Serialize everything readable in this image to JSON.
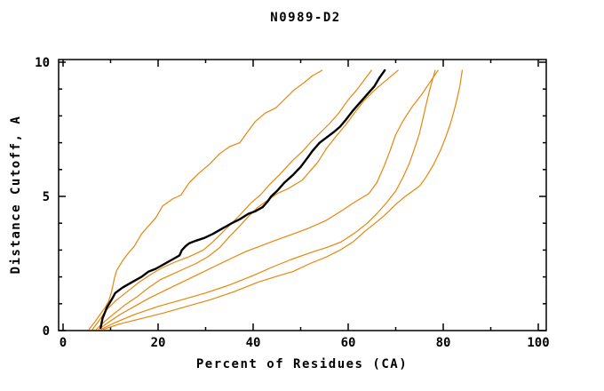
{
  "title": "N0989-D2",
  "chart_data": {
    "type": "line",
    "title": "N0989-D2",
    "xlabel": "Percent of Residues (CA)",
    "ylabel": "Distance Cutoff, A",
    "xlim": [
      0,
      100
    ],
    "ylim": [
      0,
      10
    ],
    "x_major_ticks": [
      0,
      20,
      40,
      60,
      80,
      100
    ],
    "x_major_tick_labels": [
      "0",
      "20",
      "40",
      "60",
      "80",
      "100"
    ],
    "x_minor_ticks": [
      10,
      30,
      50,
      70,
      90
    ],
    "y_major_ticks": [
      0,
      5,
      10
    ],
    "y_major_tick_labels": [
      "0",
      "5",
      "10"
    ],
    "y_minor_ticks": [
      1,
      2,
      3,
      4,
      6,
      7,
      8,
      9
    ],
    "grid": false,
    "legend": null,
    "background_color": "#ffffff",
    "frame_color": "#000000",
    "model_color": "#e8860b",
    "highlight_color": "#000000",
    "series": [
      {
        "name": "model-curve-1",
        "color": "#e8860b",
        "stroke_width": 1.2,
        "points": [
          [
            5.5,
            0.05
          ],
          [
            6.8,
            0.35
          ],
          [
            7.8,
            0.6
          ],
          [
            8.8,
            0.85
          ],
          [
            9.6,
            1.1
          ],
          [
            10.2,
            1.45
          ],
          [
            10.8,
            1.95
          ],
          [
            11.3,
            2.25
          ],
          [
            12.5,
            2.6
          ],
          [
            13.8,
            2.9
          ],
          [
            15.0,
            3.15
          ],
          [
            16.5,
            3.6
          ],
          [
            18.0,
            3.9
          ],
          [
            19.5,
            4.2
          ],
          [
            21.0,
            4.65
          ],
          [
            23.0,
            4.9
          ],
          [
            24.8,
            5.05
          ],
          [
            26.5,
            5.5
          ],
          [
            28.5,
            5.85
          ],
          [
            30.8,
            6.2
          ],
          [
            33.0,
            6.6
          ],
          [
            35.0,
            6.85
          ],
          [
            37.2,
            7.0
          ],
          [
            38.8,
            7.4
          ],
          [
            40.5,
            7.8
          ],
          [
            42.5,
            8.1
          ],
          [
            44.8,
            8.3
          ],
          [
            46.5,
            8.6
          ],
          [
            48.5,
            8.95
          ],
          [
            50.8,
            9.25
          ],
          [
            52.5,
            9.5
          ],
          [
            54.5,
            9.7
          ]
        ]
      },
      {
        "name": "model-curve-2",
        "color": "#e8860b",
        "stroke_width": 1.2,
        "points": [
          [
            6.2,
            0.05
          ],
          [
            7.5,
            0.35
          ],
          [
            9.0,
            0.75
          ],
          [
            11.0,
            1.1
          ],
          [
            13.5,
            1.45
          ],
          [
            16.0,
            1.8
          ],
          [
            18.5,
            2.1
          ],
          [
            21.0,
            2.35
          ],
          [
            23.5,
            2.55
          ],
          [
            26.5,
            2.75
          ],
          [
            29.5,
            3.0
          ],
          [
            31.5,
            3.3
          ],
          [
            33.5,
            3.65
          ],
          [
            35.5,
            4.0
          ],
          [
            37.2,
            4.3
          ],
          [
            39.5,
            4.75
          ],
          [
            41.5,
            5.05
          ],
          [
            43.5,
            5.45
          ],
          [
            45.5,
            5.8
          ],
          [
            48.4,
            6.35
          ],
          [
            50.5,
            6.7
          ],
          [
            52.0,
            7.0
          ],
          [
            54.0,
            7.35
          ],
          [
            56.0,
            7.7
          ],
          [
            58.0,
            8.1
          ],
          [
            60.0,
            8.6
          ],
          [
            61.5,
            8.9
          ],
          [
            63.0,
            9.25
          ],
          [
            64.9,
            9.7
          ]
        ]
      },
      {
        "name": "model-curve-3",
        "color": "#e8860b",
        "stroke_width": 1.2,
        "points": [
          [
            7.0,
            0.05
          ],
          [
            8.5,
            0.3
          ],
          [
            10.5,
            0.6
          ],
          [
            13.0,
            0.95
          ],
          [
            15.5,
            1.25
          ],
          [
            18.0,
            1.6
          ],
          [
            20.5,
            1.9
          ],
          [
            23.0,
            2.1
          ],
          [
            25.5,
            2.3
          ],
          [
            28.0,
            2.5
          ],
          [
            30.5,
            2.75
          ],
          [
            33.0,
            3.1
          ],
          [
            35.0,
            3.5
          ],
          [
            37.2,
            3.9
          ],
          [
            39.0,
            4.25
          ],
          [
            41.0,
            4.6
          ],
          [
            43.0,
            4.85
          ],
          [
            45.0,
            5.1
          ],
          [
            47.5,
            5.3
          ],
          [
            50.3,
            5.6
          ],
          [
            52.0,
            5.95
          ],
          [
            53.5,
            6.25
          ],
          [
            55.5,
            6.8
          ],
          [
            57.5,
            7.25
          ],
          [
            59.6,
            7.7
          ],
          [
            61.5,
            8.15
          ],
          [
            63.5,
            8.6
          ],
          [
            65.5,
            8.95
          ],
          [
            67.5,
            9.25
          ],
          [
            70.5,
            9.7
          ]
        ]
      },
      {
        "name": "model-curve-4",
        "color": "#e8860b",
        "stroke_width": 1.2,
        "points": [
          [
            7.5,
            0.05
          ],
          [
            9.5,
            0.3
          ],
          [
            12.0,
            0.6
          ],
          [
            15.0,
            0.9
          ],
          [
            18.0,
            1.2
          ],
          [
            21.5,
            1.5
          ],
          [
            25.0,
            1.8
          ],
          [
            28.5,
            2.1
          ],
          [
            32.0,
            2.4
          ],
          [
            35.5,
            2.7
          ],
          [
            38.5,
            2.95
          ],
          [
            41.5,
            3.15
          ],
          [
            44.5,
            3.35
          ],
          [
            48.4,
            3.6
          ],
          [
            51.5,
            3.8
          ],
          [
            55.3,
            4.1
          ],
          [
            58.5,
            4.45
          ],
          [
            61.0,
            4.75
          ],
          [
            64.3,
            5.1
          ],
          [
            66.0,
            5.5
          ],
          [
            67.5,
            6.1
          ],
          [
            68.8,
            6.7
          ],
          [
            70.0,
            7.3
          ],
          [
            71.5,
            7.8
          ],
          [
            73.5,
            8.35
          ],
          [
            75.5,
            8.8
          ],
          [
            77.0,
            9.2
          ],
          [
            78.9,
            9.7
          ]
        ]
      },
      {
        "name": "model-curve-5",
        "color": "#e8860b",
        "stroke_width": 1.2,
        "points": [
          [
            8.0,
            0.05
          ],
          [
            11.0,
            0.3
          ],
          [
            15.0,
            0.6
          ],
          [
            20.0,
            0.9
          ],
          [
            25.0,
            1.15
          ],
          [
            30.0,
            1.4
          ],
          [
            35.0,
            1.7
          ],
          [
            40.0,
            2.05
          ],
          [
            44.5,
            2.4
          ],
          [
            48.0,
            2.65
          ],
          [
            52.0,
            2.9
          ],
          [
            55.5,
            3.1
          ],
          [
            58.5,
            3.3
          ],
          [
            61.5,
            3.65
          ],
          [
            64.0,
            4.0
          ],
          [
            66.0,
            4.35
          ],
          [
            68.0,
            4.75
          ],
          [
            70.0,
            5.2
          ],
          [
            71.5,
            5.7
          ],
          [
            72.8,
            6.2
          ],
          [
            74.0,
            6.8
          ],
          [
            75.0,
            7.35
          ],
          [
            75.8,
            7.95
          ],
          [
            76.5,
            8.5
          ],
          [
            77.2,
            9.0
          ],
          [
            78.3,
            9.7
          ]
        ]
      },
      {
        "name": "model-curve-6",
        "color": "#e8860b",
        "stroke_width": 1.2,
        "points": [
          [
            8.5,
            0.05
          ],
          [
            12.0,
            0.25
          ],
          [
            16.5,
            0.45
          ],
          [
            21.0,
            0.65
          ],
          [
            26.0,
            0.9
          ],
          [
            31.0,
            1.15
          ],
          [
            36.0,
            1.45
          ],
          [
            41.0,
            1.8
          ],
          [
            45.5,
            2.05
          ],
          [
            48.4,
            2.2
          ],
          [
            52.0,
            2.5
          ],
          [
            55.5,
            2.75
          ],
          [
            58.3,
            3.0
          ],
          [
            61.0,
            3.3
          ],
          [
            63.5,
            3.7
          ],
          [
            66.0,
            4.05
          ],
          [
            67.7,
            4.3
          ],
          [
            70.0,
            4.7
          ],
          [
            72.0,
            5.0
          ],
          [
            74.0,
            5.25
          ],
          [
            75.1,
            5.4
          ],
          [
            76.5,
            5.75
          ],
          [
            78.0,
            6.2
          ],
          [
            79.5,
            6.75
          ],
          [
            80.5,
            7.2
          ],
          [
            81.5,
            7.7
          ],
          [
            82.3,
            8.2
          ],
          [
            83.0,
            8.7
          ],
          [
            83.5,
            9.1
          ],
          [
            84.0,
            9.7
          ]
        ]
      },
      {
        "name": "highlighted-model-curve",
        "color": "#000000",
        "stroke_width": 2.4,
        "points": [
          [
            7.9,
            0.1
          ],
          [
            8.3,
            0.45
          ],
          [
            9.2,
            0.85
          ],
          [
            10.2,
            1.15
          ],
          [
            11.0,
            1.4
          ],
          [
            12.5,
            1.6
          ],
          [
            14.0,
            1.75
          ],
          [
            15.5,
            1.9
          ],
          [
            16.5,
            2.0
          ],
          [
            18.0,
            2.2
          ],
          [
            19.5,
            2.3
          ],
          [
            20.5,
            2.4
          ],
          [
            22.0,
            2.55
          ],
          [
            23.5,
            2.7
          ],
          [
            24.5,
            2.8
          ],
          [
            25.0,
            3.0
          ],
          [
            25.8,
            3.15
          ],
          [
            26.5,
            3.25
          ],
          [
            28.0,
            3.35
          ],
          [
            29.7,
            3.45
          ],
          [
            31.5,
            3.6
          ],
          [
            33.5,
            3.8
          ],
          [
            35.5,
            4.0
          ],
          [
            37.2,
            4.15
          ],
          [
            39.0,
            4.35
          ],
          [
            40.5,
            4.45
          ],
          [
            42.0,
            4.6
          ],
          [
            43.0,
            4.8
          ],
          [
            43.8,
            5.0
          ],
          [
            45.0,
            5.2
          ],
          [
            46.5,
            5.5
          ],
          [
            48.4,
            5.8
          ],
          [
            50.0,
            6.1
          ],
          [
            51.5,
            6.45
          ],
          [
            52.5,
            6.7
          ],
          [
            54.0,
            7.0
          ],
          [
            55.5,
            7.2
          ],
          [
            57.0,
            7.4
          ],
          [
            58.3,
            7.6
          ],
          [
            59.5,
            7.85
          ],
          [
            61.0,
            8.2
          ],
          [
            62.5,
            8.5
          ],
          [
            64.0,
            8.8
          ],
          [
            65.5,
            9.1
          ],
          [
            66.5,
            9.4
          ],
          [
            67.7,
            9.7
          ]
        ]
      }
    ]
  }
}
